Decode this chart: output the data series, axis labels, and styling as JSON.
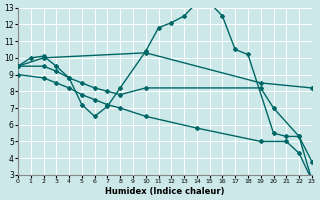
{
  "xlabel": "Humidex (Indice chaleur)",
  "bg_color": "#cce8e8",
  "grid_color": "#aadddd",
  "line_color": "#006666",
  "xlim": [
    0,
    23
  ],
  "ylim": [
    3,
    13
  ],
  "xticks": [
    0,
    1,
    2,
    3,
    4,
    5,
    6,
    7,
    8,
    9,
    10,
    11,
    12,
    13,
    14,
    15,
    16,
    17,
    18,
    19,
    20,
    21,
    22,
    23
  ],
  "yticks": [
    3,
    4,
    5,
    6,
    7,
    8,
    9,
    10,
    11,
    12,
    13
  ],
  "series": [
    {
      "x": [
        0,
        1,
        2,
        3,
        4,
        5,
        6,
        7,
        8,
        10,
        11,
        12,
        13,
        14,
        15,
        16,
        17,
        18,
        20,
        21,
        22,
        23
      ],
      "y": [
        9.5,
        10.0,
        10.1,
        9.5,
        8.8,
        7.2,
        6.5,
        7.1,
        8.2,
        10.4,
        11.8,
        12.1,
        12.5,
        13.3,
        13.3,
        12.5,
        10.5,
        10.2,
        5.5,
        5.3,
        5.3,
        2.7
      ],
      "marker": "D",
      "markersize": 2.0,
      "linewidth": 1.0
    },
    {
      "x": [
        0,
        2,
        10,
        19,
        23
      ],
      "y": [
        9.5,
        10.0,
        10.3,
        8.5,
        8.2
      ],
      "marker": "D",
      "markersize": 2.0,
      "linewidth": 1.0
    },
    {
      "x": [
        0,
        2,
        3,
        4,
        5,
        6,
        7,
        8,
        10,
        19,
        20,
        22,
        23
      ],
      "y": [
        9.5,
        9.5,
        9.2,
        8.8,
        8.5,
        8.2,
        8.0,
        7.8,
        8.2,
        8.2,
        7.0,
        5.3,
        3.8
      ],
      "marker": "D",
      "markersize": 2.0,
      "linewidth": 1.0
    },
    {
      "x": [
        0,
        2,
        3,
        4,
        5,
        6,
        7,
        8,
        10,
        14,
        19,
        21,
        22,
        23
      ],
      "y": [
        9.0,
        8.8,
        8.5,
        8.2,
        7.8,
        7.5,
        7.2,
        7.0,
        6.5,
        5.8,
        5.0,
        5.0,
        4.3,
        2.7
      ],
      "marker": "D",
      "markersize": 2.0,
      "linewidth": 1.0
    }
  ]
}
